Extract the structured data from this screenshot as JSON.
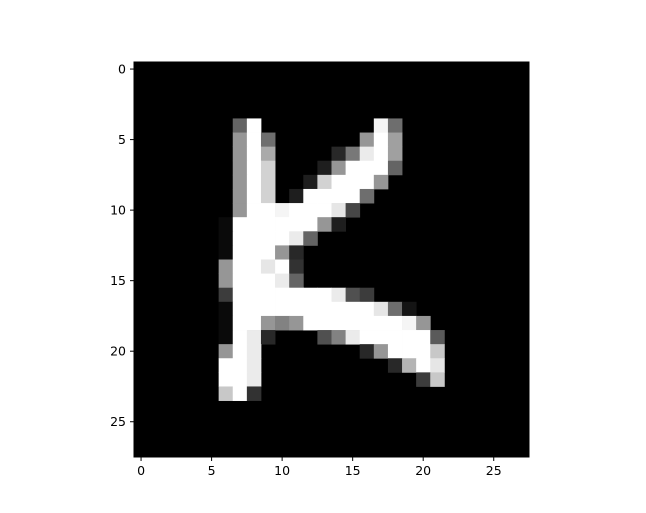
{
  "chart_data": {
    "type": "heatmap",
    "colormap": "gray",
    "value_range": [
      0,
      255
    ],
    "xlim": [
      -0.5,
      27.5
    ],
    "ylim": [
      27.5,
      -0.5
    ],
    "x_ticks": [
      0,
      5,
      10,
      15,
      20,
      25
    ],
    "y_ticks": [
      0,
      5,
      10,
      15,
      20,
      25
    ],
    "x_tick_labels": [
      "0",
      "5",
      "10",
      "15",
      "20",
      "25"
    ],
    "y_tick_labels": [
      "0",
      "5",
      "10",
      "15",
      "20",
      "25"
    ],
    "grid": false,
    "title": "",
    "xlabel": "",
    "ylabel": "",
    "pixels": [
      {
        "r": 4,
        "c": 7,
        "v": 100
      },
      {
        "r": 4,
        "c": 8,
        "v": 255
      },
      {
        "r": 4,
        "c": 17,
        "v": 245
      },
      {
        "r": 4,
        "c": 18,
        "v": 110
      },
      {
        "r": 5,
        "c": 7,
        "v": 150
      },
      {
        "r": 5,
        "c": 8,
        "v": 255
      },
      {
        "r": 5,
        "c": 9,
        "v": 110
      },
      {
        "r": 5,
        "c": 16,
        "v": 150
      },
      {
        "r": 5,
        "c": 17,
        "v": 255
      },
      {
        "r": 5,
        "c": 18,
        "v": 160
      },
      {
        "r": 6,
        "c": 7,
        "v": 150
      },
      {
        "r": 6,
        "c": 8,
        "v": 255
      },
      {
        "r": 6,
        "c": 9,
        "v": 170
      },
      {
        "r": 6,
        "c": 14,
        "v": 40
      },
      {
        "r": 6,
        "c": 15,
        "v": 120
      },
      {
        "r": 6,
        "c": 16,
        "v": 235
      },
      {
        "r": 6,
        "c": 17,
        "v": 255
      },
      {
        "r": 6,
        "c": 18,
        "v": 160
      },
      {
        "r": 7,
        "c": 7,
        "v": 150
      },
      {
        "r": 7,
        "c": 8,
        "v": 255
      },
      {
        "r": 7,
        "c": 9,
        "v": 210
      },
      {
        "r": 7,
        "c": 13,
        "v": 30
      },
      {
        "r": 7,
        "c": 14,
        "v": 150
      },
      {
        "r": 7,
        "c": 15,
        "v": 255
      },
      {
        "r": 7,
        "c": 16,
        "v": 255
      },
      {
        "r": 7,
        "c": 17,
        "v": 255
      },
      {
        "r": 7,
        "c": 18,
        "v": 100
      },
      {
        "r": 8,
        "c": 7,
        "v": 150
      },
      {
        "r": 8,
        "c": 8,
        "v": 255
      },
      {
        "r": 8,
        "c": 9,
        "v": 210
      },
      {
        "r": 8,
        "c": 12,
        "v": 30
      },
      {
        "r": 8,
        "c": 13,
        "v": 210
      },
      {
        "r": 8,
        "c": 14,
        "v": 255
      },
      {
        "r": 8,
        "c": 15,
        "v": 255
      },
      {
        "r": 8,
        "c": 16,
        "v": 255
      },
      {
        "r": 8,
        "c": 17,
        "v": 150
      },
      {
        "r": 9,
        "c": 7,
        "v": 150
      },
      {
        "r": 9,
        "c": 8,
        "v": 255
      },
      {
        "r": 9,
        "c": 9,
        "v": 210
      },
      {
        "r": 9,
        "c": 11,
        "v": 30
      },
      {
        "r": 9,
        "c": 12,
        "v": 255
      },
      {
        "r": 9,
        "c": 13,
        "v": 255
      },
      {
        "r": 9,
        "c": 14,
        "v": 255
      },
      {
        "r": 9,
        "c": 15,
        "v": 255
      },
      {
        "r": 9,
        "c": 16,
        "v": 110
      },
      {
        "r": 10,
        "c": 7,
        "v": 150
      },
      {
        "r": 10,
        "c": 8,
        "v": 255
      },
      {
        "r": 10,
        "c": 9,
        "v": 255
      },
      {
        "r": 10,
        "c": 10,
        "v": 245
      },
      {
        "r": 10,
        "c": 11,
        "v": 255
      },
      {
        "r": 10,
        "c": 12,
        "v": 255
      },
      {
        "r": 10,
        "c": 13,
        "v": 255
      },
      {
        "r": 10,
        "c": 14,
        "v": 230
      },
      {
        "r": 10,
        "c": 15,
        "v": 70
      },
      {
        "r": 11,
        "c": 6,
        "v": 10
      },
      {
        "r": 11,
        "c": 7,
        "v": 255
      },
      {
        "r": 11,
        "c": 8,
        "v": 255
      },
      {
        "r": 11,
        "c": 9,
        "v": 255
      },
      {
        "r": 11,
        "c": 10,
        "v": 255
      },
      {
        "r": 11,
        "c": 11,
        "v": 255
      },
      {
        "r": 11,
        "c": 12,
        "v": 255
      },
      {
        "r": 11,
        "c": 13,
        "v": 150
      },
      {
        "r": 11,
        "c": 14,
        "v": 30
      },
      {
        "r": 12,
        "c": 6,
        "v": 10
      },
      {
        "r": 12,
        "c": 7,
        "v": 255
      },
      {
        "r": 12,
        "c": 8,
        "v": 255
      },
      {
        "r": 12,
        "c": 9,
        "v": 255
      },
      {
        "r": 12,
        "c": 10,
        "v": 255
      },
      {
        "r": 12,
        "c": 11,
        "v": 235
      },
      {
        "r": 12,
        "c": 12,
        "v": 100
      },
      {
        "r": 13,
        "c": 6,
        "v": 10
      },
      {
        "r": 13,
        "c": 7,
        "v": 255
      },
      {
        "r": 13,
        "c": 8,
        "v": 255
      },
      {
        "r": 13,
        "c": 9,
        "v": 255
      },
      {
        "r": 13,
        "c": 10,
        "v": 150
      },
      {
        "r": 13,
        "c": 11,
        "v": 40
      },
      {
        "r": 14,
        "c": 6,
        "v": 150
      },
      {
        "r": 14,
        "c": 7,
        "v": 255
      },
      {
        "r": 14,
        "c": 8,
        "v": 255
      },
      {
        "r": 14,
        "c": 9,
        "v": 230
      },
      {
        "r": 14,
        "c": 10,
        "v": 255
      },
      {
        "r": 14,
        "c": 11,
        "v": 50
      },
      {
        "r": 15,
        "c": 6,
        "v": 150
      },
      {
        "r": 15,
        "c": 7,
        "v": 255
      },
      {
        "r": 15,
        "c": 8,
        "v": 255
      },
      {
        "r": 15,
        "c": 9,
        "v": 255
      },
      {
        "r": 15,
        "c": 10,
        "v": 235
      },
      {
        "r": 15,
        "c": 11,
        "v": 100
      },
      {
        "r": 16,
        "c": 6,
        "v": 60
      },
      {
        "r": 16,
        "c": 7,
        "v": 255
      },
      {
        "r": 16,
        "c": 8,
        "v": 255
      },
      {
        "r": 16,
        "c": 9,
        "v": 255
      },
      {
        "r": 16,
        "c": 10,
        "v": 255
      },
      {
        "r": 16,
        "c": 11,
        "v": 255
      },
      {
        "r": 16,
        "c": 12,
        "v": 255
      },
      {
        "r": 16,
        "c": 13,
        "v": 255
      },
      {
        "r": 16,
        "c": 14,
        "v": 235
      },
      {
        "r": 16,
        "c": 15,
        "v": 80
      },
      {
        "r": 16,
        "c": 16,
        "v": 60
      },
      {
        "r": 17,
        "c": 6,
        "v": 10
      },
      {
        "r": 17,
        "c": 7,
        "v": 255
      },
      {
        "r": 17,
        "c": 8,
        "v": 255
      },
      {
        "r": 17,
        "c": 9,
        "v": 255
      },
      {
        "r": 17,
        "c": 10,
        "v": 255
      },
      {
        "r": 17,
        "c": 11,
        "v": 255
      },
      {
        "r": 17,
        "c": 12,
        "v": 255
      },
      {
        "r": 17,
        "c": 13,
        "v": 255
      },
      {
        "r": 17,
        "c": 14,
        "v": 255
      },
      {
        "r": 17,
        "c": 15,
        "v": 255
      },
      {
        "r": 17,
        "c": 16,
        "v": 255
      },
      {
        "r": 17,
        "c": 17,
        "v": 230
      },
      {
        "r": 17,
        "c": 18,
        "v": 110
      },
      {
        "r": 17,
        "c": 19,
        "v": 20
      },
      {
        "r": 18,
        "c": 6,
        "v": 10
      },
      {
        "r": 18,
        "c": 7,
        "v": 255
      },
      {
        "r": 18,
        "c": 8,
        "v": 255
      },
      {
        "r": 18,
        "c": 9,
        "v": 150
      },
      {
        "r": 18,
        "c": 10,
        "v": 130
      },
      {
        "r": 18,
        "c": 11,
        "v": 150
      },
      {
        "r": 18,
        "c": 12,
        "v": 255
      },
      {
        "r": 18,
        "c": 13,
        "v": 255
      },
      {
        "r": 18,
        "c": 14,
        "v": 255
      },
      {
        "r": 18,
        "c": 15,
        "v": 255
      },
      {
        "r": 18,
        "c": 16,
        "v": 255
      },
      {
        "r": 18,
        "c": 17,
        "v": 255
      },
      {
        "r": 18,
        "c": 18,
        "v": 255
      },
      {
        "r": 18,
        "c": 19,
        "v": 245
      },
      {
        "r": 18,
        "c": 20,
        "v": 150
      },
      {
        "r": 19,
        "c": 6,
        "v": 10
      },
      {
        "r": 19,
        "c": 7,
        "v": 255
      },
      {
        "r": 19,
        "c": 8,
        "v": 235
      },
      {
        "r": 19,
        "c": 9,
        "v": 40
      },
      {
        "r": 19,
        "c": 13,
        "v": 80
      },
      {
        "r": 19,
        "c": 14,
        "v": 130
      },
      {
        "r": 19,
        "c": 15,
        "v": 235
      },
      {
        "r": 19,
        "c": 16,
        "v": 255
      },
      {
        "r": 19,
        "c": 17,
        "v": 255
      },
      {
        "r": 19,
        "c": 18,
        "v": 255
      },
      {
        "r": 19,
        "c": 19,
        "v": 255
      },
      {
        "r": 19,
        "c": 20,
        "v": 255
      },
      {
        "r": 19,
        "c": 21,
        "v": 90
      },
      {
        "r": 20,
        "c": 6,
        "v": 150
      },
      {
        "r": 20,
        "c": 7,
        "v": 255
      },
      {
        "r": 20,
        "c": 8,
        "v": 235
      },
      {
        "r": 20,
        "c": 16,
        "v": 40
      },
      {
        "r": 20,
        "c": 17,
        "v": 150
      },
      {
        "r": 20,
        "c": 18,
        "v": 255
      },
      {
        "r": 20,
        "c": 19,
        "v": 255
      },
      {
        "r": 20,
        "c": 20,
        "v": 255
      },
      {
        "r": 20,
        "c": 21,
        "v": 200
      },
      {
        "r": 21,
        "c": 6,
        "v": 255
      },
      {
        "r": 21,
        "c": 7,
        "v": 255
      },
      {
        "r": 21,
        "c": 8,
        "v": 235
      },
      {
        "r": 21,
        "c": 18,
        "v": 40
      },
      {
        "r": 21,
        "c": 19,
        "v": 180
      },
      {
        "r": 21,
        "c": 20,
        "v": 255
      },
      {
        "r": 21,
        "c": 21,
        "v": 230
      },
      {
        "r": 22,
        "c": 6,
        "v": 255
      },
      {
        "r": 22,
        "c": 7,
        "v": 255
      },
      {
        "r": 22,
        "c": 8,
        "v": 235
      },
      {
        "r": 22,
        "c": 20,
        "v": 60
      },
      {
        "r": 22,
        "c": 21,
        "v": 200
      },
      {
        "r": 23,
        "c": 6,
        "v": 200
      },
      {
        "r": 23,
        "c": 7,
        "v": 255
      },
      {
        "r": 23,
        "c": 8,
        "v": 50
      }
    ]
  }
}
